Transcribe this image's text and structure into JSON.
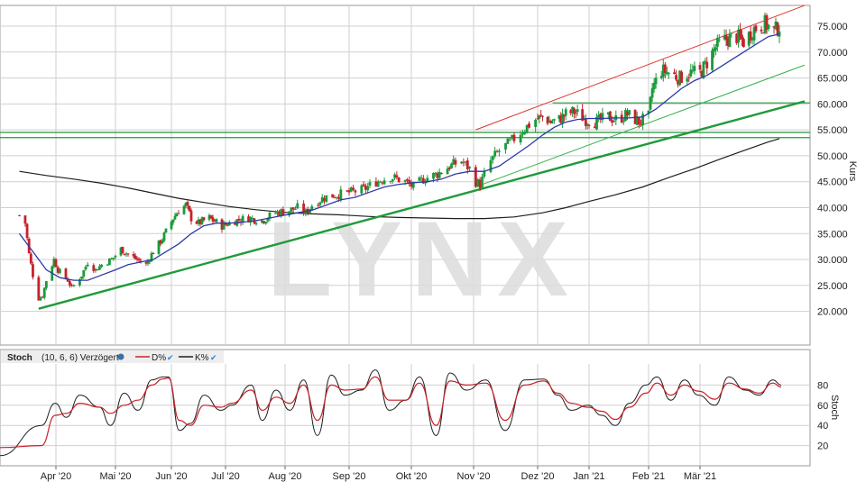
{
  "watermark": "LYNX",
  "colors": {
    "grid": "#cfcfcf",
    "up_candle": "#1a9a3a",
    "down_candle": "#c8202a",
    "sma_short": "#2d3aa6",
    "sma_long": "#1e1e1e",
    "channel_upper": "#e0302a",
    "channel_lower": "#2fb04a",
    "support_lines": "#1f9a3a",
    "stoch_d": "#c8202a",
    "stoch_k": "#1e1e1e",
    "watermark": "#dcdcdc"
  },
  "legend": {
    "name": "Stoch",
    "params": "(10, 6, 6) Verzögert",
    "d_label": "D%",
    "k_label": "K%"
  },
  "chart_data": [
    {
      "type": "candlestick",
      "ylabel": "Kurs",
      "ylim": [
        13.5,
        79
      ],
      "yticks": [
        20,
        25,
        30,
        35,
        40,
        45,
        50,
        55,
        60,
        65,
        70,
        75
      ],
      "ytick_labels": [
        "20.000",
        "25.000",
        "30.000",
        "35.000",
        "40.000",
        "45.000",
        "50.000",
        "55.000",
        "60.000",
        "65.000",
        "70.000",
        "75.000"
      ],
      "x_months": [
        "Apr '20",
        "Mai '20",
        "Jun '20",
        "Jul '20",
        "Aug '20",
        "Sep '20",
        "Okt '20",
        "Nov '20",
        "Dez '20",
        "Jan '21",
        "Feb '21",
        "Mär '21"
      ],
      "grid": true,
      "price_path": [
        [
          "2020-03-13",
          38.5
        ],
        [
          "2020-03-16",
          37
        ],
        [
          "2020-03-18",
          31
        ],
        [
          "2020-03-20",
          27
        ],
        [
          "2020-03-23",
          22.5
        ],
        [
          "2020-03-25",
          23
        ],
        [
          "2020-03-27",
          26
        ],
        [
          "2020-03-31",
          30
        ],
        [
          "2020-04-02",
          28
        ],
        [
          "2020-04-07",
          26
        ],
        [
          "2020-04-09",
          24.5
        ],
        [
          "2020-04-14",
          27
        ],
        [
          "2020-04-17",
          29.5
        ],
        [
          "2020-04-21",
          28
        ],
        [
          "2020-04-24",
          29
        ],
        [
          "2020-04-29",
          30
        ],
        [
          "2020-05-04",
          32
        ],
        [
          "2020-05-08",
          31
        ],
        [
          "2020-05-13",
          30
        ],
        [
          "2020-05-18",
          29
        ],
        [
          "2020-05-21",
          31
        ],
        [
          "2020-05-27",
          34
        ],
        [
          "2020-06-02",
          38
        ],
        [
          "2020-06-05",
          39.5
        ],
        [
          "2020-06-09",
          40.5
        ],
        [
          "2020-06-12",
          38
        ],
        [
          "2020-06-16",
          37
        ],
        [
          "2020-06-22",
          38
        ],
        [
          "2020-06-29",
          36.5
        ],
        [
          "2020-07-06",
          37.5
        ],
        [
          "2020-07-13",
          38
        ],
        [
          "2020-07-20",
          37.5
        ],
        [
          "2020-07-27",
          39
        ],
        [
          "2020-08-03",
          39.5
        ],
        [
          "2020-08-07",
          40
        ],
        [
          "2020-08-11",
          39
        ],
        [
          "2020-08-14",
          40.5
        ],
        [
          "2020-08-20",
          42
        ],
        [
          "2020-08-26",
          42.5
        ],
        [
          "2020-09-02",
          43
        ],
        [
          "2020-09-08",
          43.5
        ],
        [
          "2020-09-14",
          45
        ],
        [
          "2020-09-21",
          46
        ],
        [
          "2020-09-28",
          45
        ],
        [
          "2020-10-02",
          44
        ],
        [
          "2020-10-07",
          45.5
        ],
        [
          "2020-10-14",
          46.5
        ],
        [
          "2020-10-20",
          48
        ],
        [
          "2020-10-26",
          49
        ],
        [
          "2020-10-30",
          47.5
        ],
        [
          "2020-11-02",
          45
        ],
        [
          "2020-11-04",
          44.5
        ],
        [
          "2020-11-09",
          49
        ],
        [
          "2020-11-13",
          51
        ],
        [
          "2020-11-18",
          52.5
        ],
        [
          "2020-11-24",
          55
        ],
        [
          "2020-11-30",
          57
        ],
        [
          "2020-12-04",
          57.5
        ],
        [
          "2020-12-09",
          56.5
        ],
        [
          "2020-12-14",
          57
        ],
        [
          "2020-12-18",
          58
        ],
        [
          "2020-12-23",
          58.5
        ],
        [
          "2020-12-30",
          57
        ],
        [
          "2021-01-05",
          56.5
        ],
        [
          "2021-01-11",
          57.5
        ],
        [
          "2021-01-15",
          57
        ],
        [
          "2021-01-21",
          58
        ],
        [
          "2021-01-27",
          56.5
        ],
        [
          "2021-02-01",
          57.5
        ],
        [
          "2021-02-03",
          63
        ],
        [
          "2021-02-08",
          66.5
        ],
        [
          "2021-02-12",
          66
        ],
        [
          "2021-02-18",
          65
        ],
        [
          "2021-02-23",
          66
        ],
        [
          "2021-03-01",
          66
        ],
        [
          "2021-03-05",
          68
        ],
        [
          "2021-03-10",
          71
        ],
        [
          "2021-03-16",
          72.5
        ],
        [
          "2021-03-22",
          73
        ],
        [
          "2021-03-26",
          72
        ],
        [
          "2021-04-01",
          74.5
        ],
        [
          "2021-04-07",
          75.5
        ],
        [
          "2021-04-12",
          74
        ],
        [
          "2021-04-15",
          75
        ]
      ],
      "sma_short": [
        [
          "2020-03-13",
          35
        ],
        [
          "2020-03-20",
          31.5
        ],
        [
          "2020-03-27",
          28
        ],
        [
          "2020-04-03",
          26.5
        ],
        [
          "2020-04-10",
          26
        ],
        [
          "2020-04-17",
          26
        ],
        [
          "2020-04-24",
          27
        ],
        [
          "2020-05-01",
          28
        ],
        [
          "2020-05-08",
          29
        ],
        [
          "2020-05-15",
          29.5
        ],
        [
          "2020-05-22",
          30
        ],
        [
          "2020-05-29",
          31.5
        ],
        [
          "2020-06-05",
          33
        ],
        [
          "2020-06-12",
          35
        ],
        [
          "2020-06-19",
          36.5
        ],
        [
          "2020-06-26",
          37
        ],
        [
          "2020-07-03",
          37
        ],
        [
          "2020-07-10",
          37.2
        ],
        [
          "2020-07-17",
          37.5
        ],
        [
          "2020-07-24",
          38
        ],
        [
          "2020-07-31",
          38.5
        ],
        [
          "2020-08-07",
          39
        ],
        [
          "2020-08-14",
          39.5
        ],
        [
          "2020-08-21",
          40.5
        ],
        [
          "2020-08-28",
          41.5
        ],
        [
          "2020-09-04",
          42
        ],
        [
          "2020-09-11",
          43
        ],
        [
          "2020-09-18",
          44
        ],
        [
          "2020-09-25",
          44.5
        ],
        [
          "2020-10-02",
          44.8
        ],
        [
          "2020-10-09",
          45
        ],
        [
          "2020-10-16",
          45.5
        ],
        [
          "2020-10-23",
          46.5
        ],
        [
          "2020-10-30",
          47
        ],
        [
          "2020-11-06",
          47
        ],
        [
          "2020-11-13",
          48
        ],
        [
          "2020-11-20",
          50
        ],
        [
          "2020-11-27",
          52
        ],
        [
          "2020-12-04",
          54
        ],
        [
          "2020-12-11",
          55.5
        ],
        [
          "2020-12-18",
          56.5
        ],
        [
          "2020-12-25",
          57
        ],
        [
          "2021-01-01",
          57.2
        ],
        [
          "2021-01-08",
          57.2
        ],
        [
          "2021-01-15",
          57.3
        ],
        [
          "2021-01-22",
          57.3
        ],
        [
          "2021-01-29",
          57.5
        ],
        [
          "2021-02-05",
          59
        ],
        [
          "2021-02-12",
          61
        ],
        [
          "2021-02-19",
          63
        ],
        [
          "2021-02-26",
          64.5
        ],
        [
          "2021-03-05",
          65.5
        ],
        [
          "2021-03-12",
          67
        ],
        [
          "2021-03-19",
          68.5
        ],
        [
          "2021-03-26",
          70
        ],
        [
          "2021-04-02",
          71.5
        ],
        [
          "2021-04-09",
          73
        ],
        [
          "2021-04-15",
          73.5
        ]
      ],
      "sma_long": [
        [
          "2020-03-13",
          47
        ],
        [
          "2020-03-27",
          46.2
        ],
        [
          "2020-04-10",
          45.5
        ],
        [
          "2020-04-24",
          44.7
        ],
        [
          "2020-05-08",
          43.8
        ],
        [
          "2020-05-22",
          42.8
        ],
        [
          "2020-06-05",
          41.8
        ],
        [
          "2020-06-19",
          41
        ],
        [
          "2020-07-03",
          40.2
        ],
        [
          "2020-07-17",
          39.6
        ],
        [
          "2020-07-31",
          39.1
        ],
        [
          "2020-08-14",
          38.8
        ],
        [
          "2020-08-28",
          38.6
        ],
        [
          "2020-09-11",
          38.3
        ],
        [
          "2020-09-25",
          38.1
        ],
        [
          "2020-10-09",
          38
        ],
        [
          "2020-10-23",
          37.9
        ],
        [
          "2020-11-06",
          37.9
        ],
        [
          "2020-11-20",
          38.2
        ],
        [
          "2020-12-04",
          39
        ],
        [
          "2020-12-18",
          40
        ],
        [
          "2021-01-01",
          41.2
        ],
        [
          "2021-01-15",
          42.5
        ],
        [
          "2021-01-29",
          44
        ],
        [
          "2021-02-12",
          45.8
        ],
        [
          "2021-02-26",
          47.5
        ],
        [
          "2021-03-12",
          49.3
        ],
        [
          "2021-03-26",
          51
        ],
        [
          "2021-04-09",
          52.7
        ],
        [
          "2021-04-15",
          53.3
        ]
      ],
      "trendlines": [
        {
          "name": "channel-upper",
          "kind": "channel",
          "from": [
            "2020-11-02",
            55
          ],
          "to": [
            "2021-04-29",
            79
          ]
        },
        {
          "name": "channel-lower",
          "kind": "channel-lower",
          "from": [
            "2020-11-02",
            44
          ],
          "to": [
            "2021-04-29",
            67.5
          ]
        },
        {
          "name": "long-support",
          "kind": "support",
          "from": [
            "2020-03-23",
            20.5
          ],
          "to": [
            "2021-04-29",
            60.5
          ]
        }
      ],
      "horizontal_lines": [
        60.2,
        54.5,
        53.5
      ],
      "horizontal_segment": {
        "from": "2020-12-10",
        "level": 60.2
      }
    },
    {
      "type": "line",
      "title": "Stoch",
      "ylabel": "Stoch",
      "ylim": [
        0,
        100
      ],
      "yticks": [
        20,
        40,
        60,
        80
      ],
      "ytick_labels": [
        "20",
        "40",
        "60",
        "80"
      ],
      "grid": true,
      "series": [
        {
          "name": "K%",
          "points": [
            [
              0,
              10
            ],
            [
              30,
              40
            ],
            [
              40,
              62
            ],
            [
              48,
              48
            ],
            [
              58,
              70
            ],
            [
              72,
              58
            ],
            [
              80,
              40
            ],
            [
              90,
              72
            ],
            [
              100,
              55
            ],
            [
              110,
              85
            ],
            [
              118,
              88
            ],
            [
              122,
              88
            ],
            [
              130,
              35
            ],
            [
              138,
              42
            ],
            [
              148,
              70
            ],
            [
              160,
              55
            ],
            [
              168,
              60
            ],
            [
              182,
              80
            ],
            [
              190,
              45
            ],
            [
              200,
              75
            ],
            [
              210,
              55
            ],
            [
              220,
              85
            ],
            [
              230,
              30
            ],
            [
              240,
              90
            ],
            [
              250,
              70
            ],
            [
              262,
              75
            ],
            [
              272,
              95
            ],
            [
              282,
              55
            ],
            [
              294,
              65
            ],
            [
              304,
              88
            ],
            [
              316,
              30
            ],
            [
              326,
              92
            ],
            [
              338,
              75
            ],
            [
              352,
              85
            ],
            [
              366,
              35
            ],
            [
              380,
              85
            ],
            [
              394,
              86
            ],
            [
              404,
              70
            ],
            [
              414,
              55
            ],
            [
              426,
              60
            ],
            [
              436,
              50
            ],
            [
              446,
              40
            ],
            [
              456,
              62
            ],
            [
              468,
              80
            ],
            [
              476,
              88
            ],
            [
              486,
              65
            ],
            [
              496,
              85
            ],
            [
              506,
              70
            ],
            [
              518,
              60
            ],
            [
              528,
              88
            ],
            [
              540,
              75
            ],
            [
              550,
              70
            ],
            [
              560,
              85
            ],
            [
              566,
              80
            ]
          ],
          "pixel_note": ""
        },
        {
          "name": "D%",
          "points": [
            [
              0,
              18
            ],
            [
              30,
              20
            ],
            [
              40,
              50
            ],
            [
              48,
              52
            ],
            [
              58,
              62
            ],
            [
              72,
              58
            ],
            [
              80,
              52
            ],
            [
              90,
              60
            ],
            [
              100,
              65
            ],
            [
              110,
              80
            ],
            [
              118,
              86
            ],
            [
              122,
              87
            ],
            [
              130,
              45
            ],
            [
              138,
              40
            ],
            [
              148,
              60
            ],
            [
              160,
              58
            ],
            [
              168,
              62
            ],
            [
              182,
              75
            ],
            [
              190,
              55
            ],
            [
              200,
              68
            ],
            [
              210,
              62
            ],
            [
              220,
              80
            ],
            [
              230,
              45
            ],
            [
              240,
              80
            ],
            [
              250,
              75
            ],
            [
              262,
              76
            ],
            [
              272,
              88
            ],
            [
              282,
              65
            ],
            [
              294,
              65
            ],
            [
              304,
              82
            ],
            [
              316,
              40
            ],
            [
              326,
              84
            ],
            [
              338,
              80
            ],
            [
              352,
              82
            ],
            [
              366,
              45
            ],
            [
              380,
              80
            ],
            [
              394,
              84
            ],
            [
              404,
              72
            ],
            [
              414,
              62
            ],
            [
              426,
              58
            ],
            [
              436,
              54
            ],
            [
              446,
              46
            ],
            [
              456,
              58
            ],
            [
              468,
              72
            ],
            [
              476,
              82
            ],
            [
              486,
              70
            ],
            [
              496,
              80
            ],
            [
              506,
              74
            ],
            [
              518,
              66
            ],
            [
              528,
              82
            ],
            [
              540,
              76
            ],
            [
              550,
              72
            ],
            [
              560,
              82
            ],
            [
              566,
              78
            ]
          ]
        }
      ]
    }
  ]
}
